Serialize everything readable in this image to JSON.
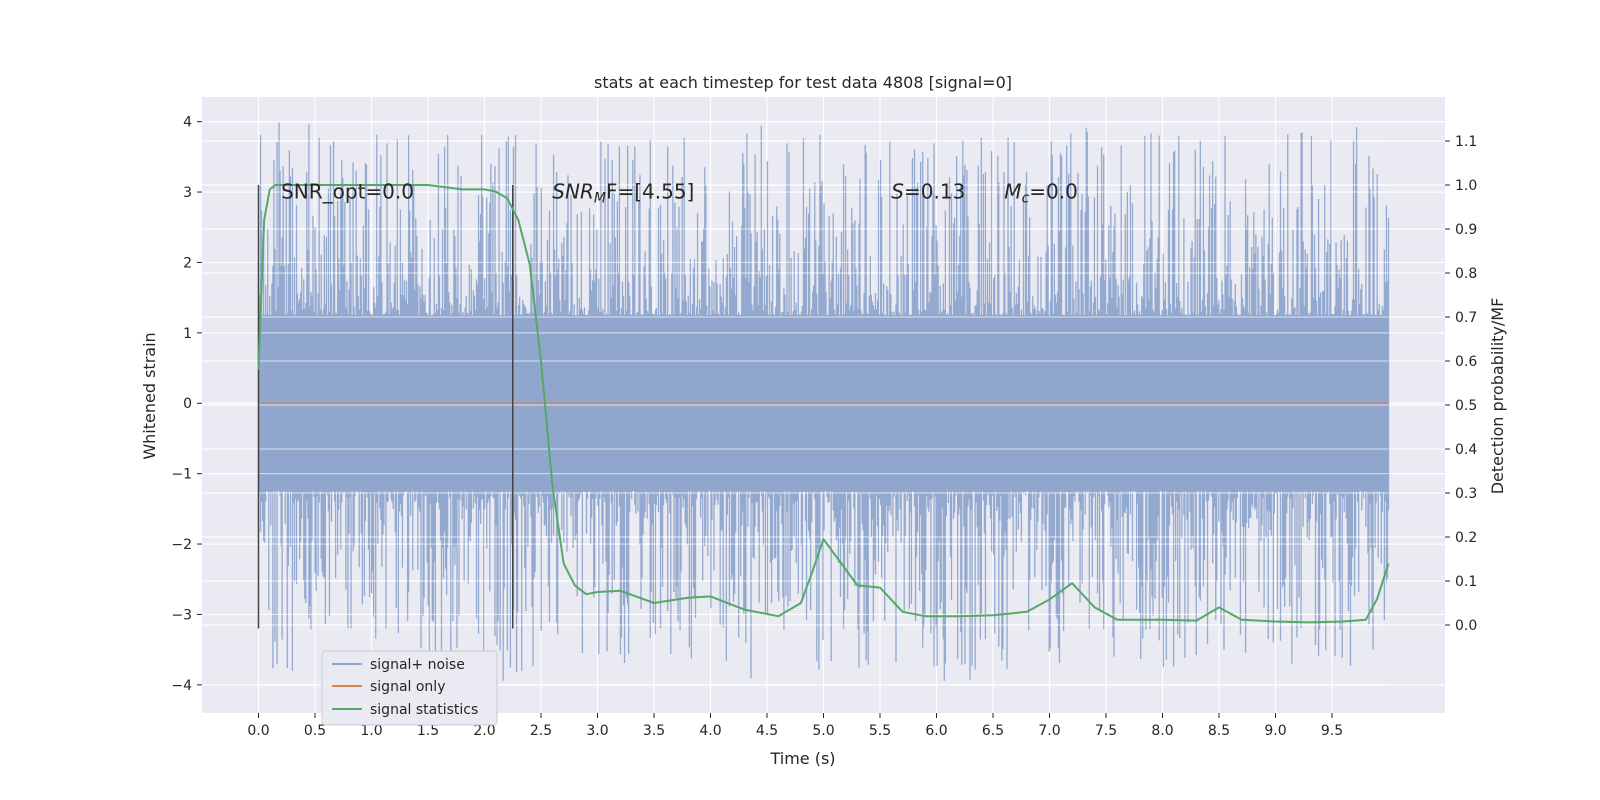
{
  "chart_data": {
    "type": "line",
    "title": "stats at each timestep for test data 4808 [signal=0]",
    "xlabel": "Time (s)",
    "ylabel_left": "Whitened strain",
    "ylabel_right": "Detection probability/MF",
    "xlim": [
      -0.5,
      10.5
    ],
    "ylim_left": [
      -4.4,
      4.35
    ],
    "ylim_right": [
      -0.2,
      1.2
    ],
    "x_ticks": [
      "0.0",
      "0.5",
      "1.0",
      "1.5",
      "2.0",
      "2.5",
      "3.0",
      "3.5",
      "4.0",
      "4.5",
      "5.0",
      "5.5",
      "6.0",
      "6.5",
      "7.0",
      "7.5",
      "8.0",
      "8.5",
      "9.0",
      "9.5"
    ],
    "y_ticks_left": [
      "4",
      "3",
      "2",
      "1",
      "0",
      "−1",
      "−2",
      "−3",
      "−4"
    ],
    "y_ticks_right": [
      "1.1",
      "1.0",
      "0.9",
      "0.8",
      "0.7",
      "0.6",
      "0.5",
      "0.4",
      "0.3",
      "0.2",
      "0.1",
      "0.0"
    ],
    "grid": true,
    "colors": {
      "background": "#eaeaf2",
      "grid": "#ffffff",
      "noise": "#8fa5cc",
      "signal": "#dd8452",
      "stats": "#55a868",
      "vline": "#444444"
    },
    "annotations": [
      {
        "text": "SNR_opt=0.0",
        "x": 0.2,
        "y": 3.05
      },
      {
        "text_main": "SNR",
        "text_sub": "M",
        "text_tail": "F=[4.55]",
        "x": 2.6,
        "y": 3.05
      },
      {
        "text_main": "S",
        "text_tail": "=0.13",
        "x": 5.6,
        "y": 3.05
      },
      {
        "text_main": "M",
        "text_sub": "c",
        "text_tail": "=0.0",
        "x": 6.6,
        "y": 3.05
      }
    ],
    "vlines": [
      {
        "x": 0.0,
        "ymin": -3.2,
        "ymax": 3.1
      },
      {
        "x": 2.25,
        "ymin": -3.2,
        "ymax": 3.1
      }
    ],
    "noise_series": {
      "name": "signal+ noise",
      "x_start": 0.0,
      "x_end": 10.0,
      "core_amplitude": 1.25,
      "max_peak": 4.0,
      "min_peak": -3.95
    },
    "signal_series": {
      "name": "signal only",
      "value": 0.0
    },
    "stats_series": {
      "name": "signal statistics",
      "x": [
        0.0,
        0.05,
        0.1,
        0.15,
        0.2,
        0.3,
        0.5,
        1.0,
        1.5,
        1.8,
        2.0,
        2.1,
        2.2,
        2.3,
        2.4,
        2.5,
        2.6,
        2.7,
        2.8,
        2.9,
        3.0,
        3.2,
        3.5,
        3.8,
        4.0,
        4.3,
        4.6,
        4.8,
        4.9,
        5.0,
        5.1,
        5.3,
        5.5,
        5.7,
        5.9,
        6.2,
        6.5,
        6.8,
        7.0,
        7.2,
        7.4,
        7.6,
        8.0,
        8.3,
        8.5,
        8.7,
        9.0,
        9.3,
        9.6,
        9.8,
        9.9,
        10.0
      ],
      "y": [
        0.58,
        0.92,
        0.99,
        1.0,
        1.0,
        1.0,
        1.0,
        1.0,
        1.0,
        0.99,
        0.99,
        0.985,
        0.97,
        0.92,
        0.82,
        0.6,
        0.32,
        0.14,
        0.09,
        0.07,
        0.075,
        0.078,
        0.05,
        0.062,
        0.065,
        0.035,
        0.02,
        0.05,
        0.12,
        0.195,
        0.16,
        0.09,
        0.085,
        0.03,
        0.02,
        0.02,
        0.022,
        0.03,
        0.058,
        0.095,
        0.04,
        0.012,
        0.012,
        0.01,
        0.04,
        0.012,
        0.008,
        0.006,
        0.008,
        0.012,
        0.06,
        0.14
      ]
    },
    "legend": {
      "placement": "lower-left",
      "entries": [
        "signal+ noise",
        "signal only",
        "signal statistics"
      ]
    }
  }
}
